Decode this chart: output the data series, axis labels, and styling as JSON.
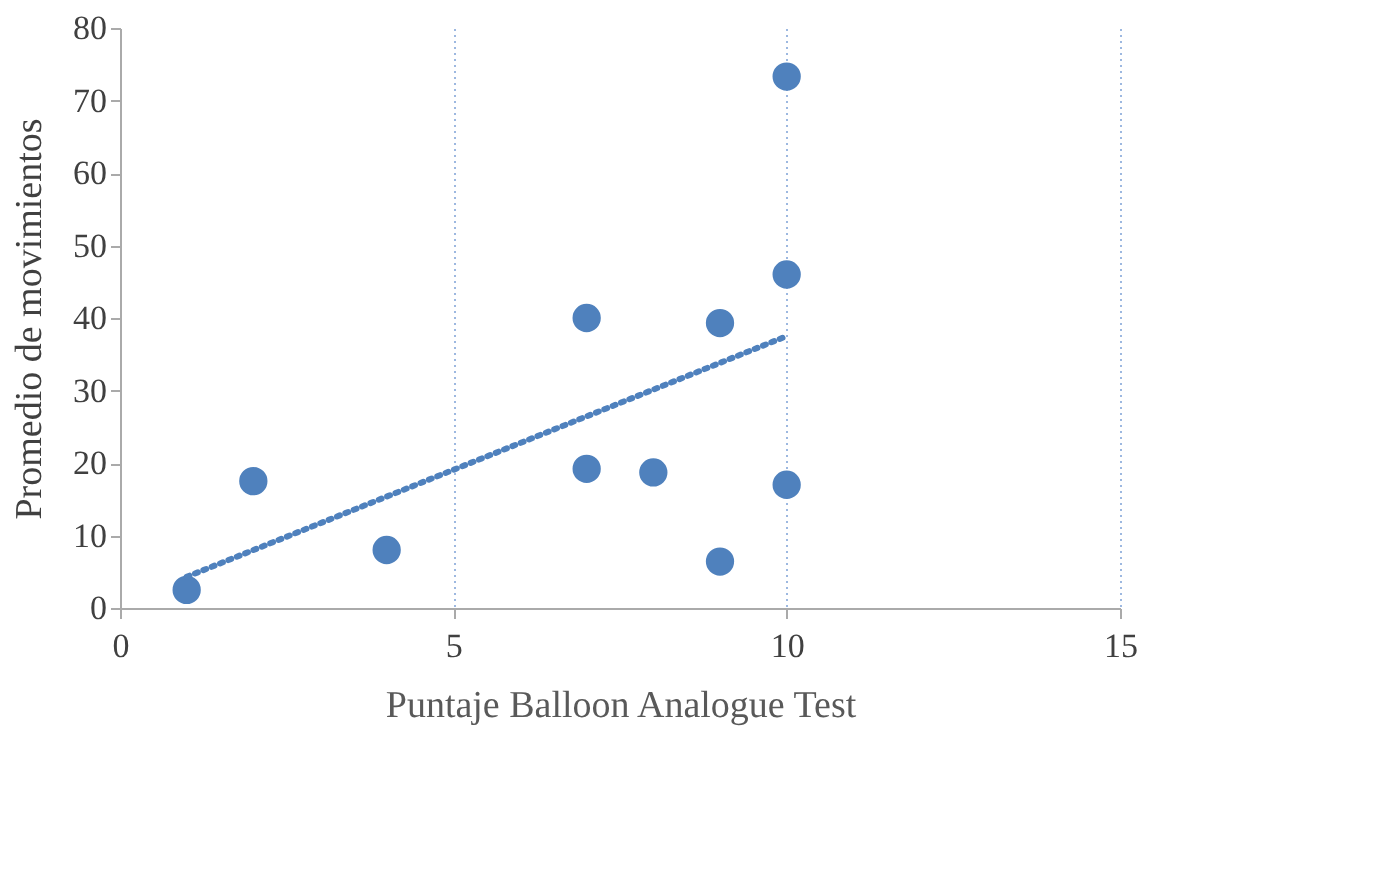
{
  "chart_data": {
    "type": "scatter",
    "xlabel": "Puntaje  Balloon Analogue  Test",
    "ylabel": "Promedio de movimientos",
    "xlim": [
      0,
      15
    ],
    "xticks": [
      0,
      5,
      10,
      15
    ],
    "ylim": [
      0,
      80
    ],
    "yticks": [
      0,
      10,
      20,
      30,
      40,
      50,
      60,
      70,
      80
    ],
    "grid": "x",
    "marker": "circle",
    "series": [
      {
        "color": "#4f81bd",
        "x": [
          1,
          2,
          4,
          7,
          7,
          8,
          9,
          9,
          10,
          10,
          10
        ],
        "values": [
          2.5,
          17.5,
          8,
          40,
          19.2,
          18.7,
          39.3,
          6.4,
          73.3,
          46,
          17
        ]
      },
      {
        "type": "line",
        "color": "#4f81bd",
        "line_style": "dotted",
        "marker": "none",
        "x": [
          1,
          10
        ],
        "values": [
          4.3,
          37.5
        ]
      }
    ]
  }
}
